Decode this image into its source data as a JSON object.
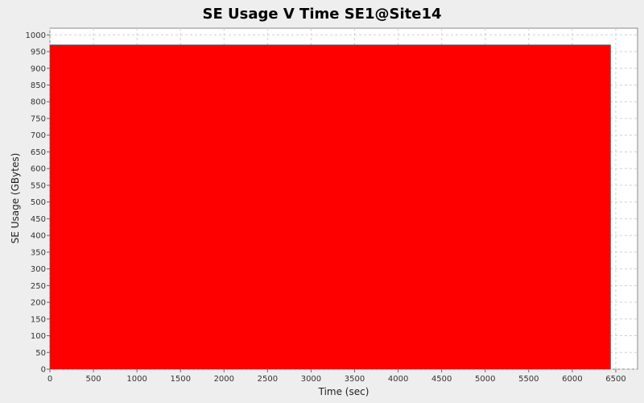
{
  "chart_data": {
    "type": "area",
    "title": "SE Usage V Time SE1@Site14",
    "xlabel": "Time (sec)",
    "ylabel": "SE Usage (GBytes)",
    "xlim": [
      0,
      6750
    ],
    "ylim": [
      0,
      1020
    ],
    "xticks": [
      0,
      500,
      1000,
      1500,
      2000,
      2500,
      3000,
      3500,
      4000,
      4500,
      5000,
      5500,
      6000,
      6500
    ],
    "yticks": [
      0,
      50,
      100,
      150,
      200,
      250,
      300,
      350,
      400,
      450,
      500,
      550,
      600,
      650,
      700,
      750,
      800,
      850,
      900,
      950,
      1000
    ],
    "grid": true,
    "legend": "none",
    "series": [
      {
        "color": "#ff0000",
        "x": [
          0,
          0,
          6440,
          6440
        ],
        "y": [
          0,
          970,
          970,
          0
        ]
      }
    ]
  }
}
